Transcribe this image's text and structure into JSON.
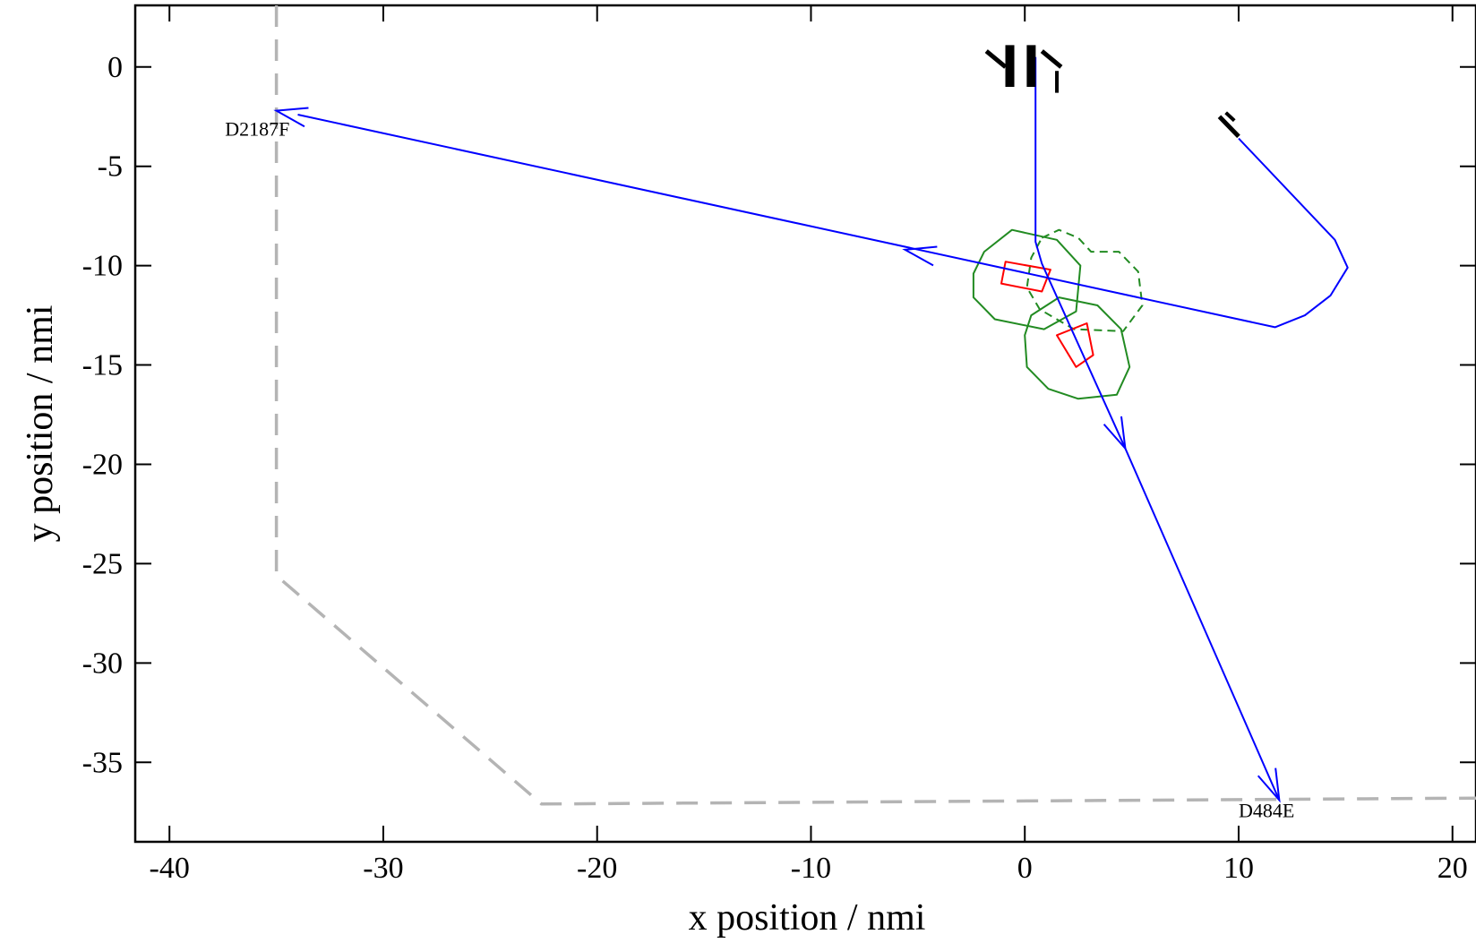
{
  "chart_data": {
    "type": "line",
    "title": "",
    "xlabel": "x position / nmi",
    "ylabel": "y position / nmi",
    "xlim": [
      -41.6,
      21.1
    ],
    "ylim": [
      -39,
      3.1
    ],
    "x_ticks": [
      -40,
      -30,
      -20,
      -10,
      0,
      10,
      20
    ],
    "y_ticks": [
      0,
      -5,
      -10,
      -15,
      -20,
      -25,
      -30,
      -35
    ],
    "x_tick_labels": [
      "-40",
      "-30",
      "-20",
      "-10",
      "0",
      "10",
      "20"
    ],
    "y_tick_labels": [
      "0",
      "-5",
      "-10",
      "-15",
      "-20",
      "-25",
      "-30",
      "-35"
    ],
    "grid": false,
    "colors": {
      "track": "#0000ff",
      "conflict_zone": "#228b22",
      "aircraft_box": "#ff0000",
      "boundary": "#b4b4b4",
      "runway": "#000000"
    },
    "series": [
      {
        "role": "track-west",
        "points": [
          [
            10,
            -3.6
          ],
          [
            14.5,
            -8.7
          ],
          [
            15.1,
            -10.1
          ],
          [
            14.3,
            -11.5
          ],
          [
            13.1,
            -12.5
          ],
          [
            11.7,
            -13.1
          ],
          [
            -34,
            -2.4
          ]
        ]
      },
      {
        "role": "track-south",
        "points": [
          [
            0.5,
            0.5
          ],
          [
            0.5,
            -8.8
          ],
          [
            0.8,
            -9.9
          ],
          [
            4.7,
            -19.2
          ],
          [
            11.9,
            -36.9
          ]
        ]
      },
      {
        "role": "boundary",
        "points": [
          [
            -35,
            3.1
          ],
          [
            -35,
            -25.6
          ],
          [
            -22.6,
            -37.1
          ],
          [
            21.1,
            -36.8
          ]
        ]
      },
      {
        "role": "zone-solid-1",
        "points": [
          [
            -1.9,
            -9.3
          ],
          [
            -0.6,
            -8.2
          ],
          [
            1.5,
            -8.7
          ],
          [
            2.6,
            -10.0
          ],
          [
            2.4,
            -12.3
          ],
          [
            0.9,
            -13.2
          ],
          [
            -1.4,
            -12.7
          ],
          [
            -2.4,
            -11.6
          ],
          [
            -2.4,
            -10.4
          ]
        ]
      },
      {
        "role": "zone-dashed",
        "points": [
          [
            0.8,
            -8.6
          ],
          [
            1.6,
            -8.2
          ],
          [
            2.5,
            -8.6
          ],
          [
            3.1,
            -9.3
          ],
          [
            4.4,
            -9.3
          ],
          [
            5.3,
            -10.3
          ],
          [
            5.5,
            -12.0
          ],
          [
            4.6,
            -13.3
          ],
          [
            2.3,
            -13.2
          ],
          [
            0.7,
            -12.2
          ],
          [
            0.1,
            -11.1
          ],
          [
            0.3,
            -9.6
          ]
        ]
      },
      {
        "role": "zone-solid-2",
        "points": [
          [
            0.3,
            -12.5
          ],
          [
            1.6,
            -11.6
          ],
          [
            3.4,
            -12.0
          ],
          [
            4.5,
            -13.2
          ],
          [
            4.9,
            -15.1
          ],
          [
            4.3,
            -16.5
          ],
          [
            2.5,
            -16.7
          ],
          [
            1.1,
            -16.2
          ],
          [
            0.1,
            -15.1
          ],
          [
            0.0,
            -13.5
          ]
        ]
      },
      {
        "role": "aircraft-1",
        "points": [
          [
            -0.9,
            -9.8
          ],
          [
            1.2,
            -10.2
          ],
          [
            0.8,
            -11.3
          ],
          [
            -1.1,
            -10.9
          ]
        ]
      },
      {
        "role": "aircraft-2",
        "points": [
          [
            1.5,
            -13.5
          ],
          [
            2.9,
            -12.9
          ],
          [
            3.2,
            -14.5
          ],
          [
            2.4,
            -15.1
          ]
        ]
      }
    ],
    "arrows": [
      {
        "at": [
          4.7,
          -19.2
        ],
        "from": [
          0.8,
          -9.9
        ]
      },
      {
        "at": [
          11.9,
          -36.9
        ],
        "from": [
          0.8,
          -9.9
        ]
      },
      {
        "at": [
          -5.6,
          -9.2
        ],
        "from": [
          11.7,
          -13.1
        ]
      },
      {
        "at": [
          -35,
          -2.2
        ],
        "from": [
          11.7,
          -13.1
        ]
      }
    ],
    "runway_marks": [
      {
        "x1": -1.8,
        "y1": 0.8,
        "x2": -0.9,
        "y2": 0.0,
        "w": 5
      },
      {
        "x1": -0.7,
        "y1": 1.1,
        "x2": -0.7,
        "y2": -1.0,
        "w": 10
      },
      {
        "x1": 0.3,
        "y1": 1.1,
        "x2": 0.3,
        "y2": -1.0,
        "w": 10
      },
      {
        "x1": 0.8,
        "y1": 0.8,
        "x2": 1.7,
        "y2": 0.0,
        "w": 5
      },
      {
        "x1": 1.5,
        "y1": -0.2,
        "x2": 1.5,
        "y2": -1.3,
        "w": 4
      },
      {
        "x1": 9.1,
        "y1": -2.5,
        "x2": 10.0,
        "y2": -3.5,
        "w": 5
      },
      {
        "x1": 9.4,
        "y1": -2.3,
        "x2": 9.8,
        "y2": -2.7,
        "w": 4
      }
    ],
    "annotations": [
      {
        "text": "D2187F",
        "x": -37.4,
        "y": -3.1
      },
      {
        "text": "D484E",
        "x": 10.0,
        "y": -37.4
      }
    ]
  }
}
